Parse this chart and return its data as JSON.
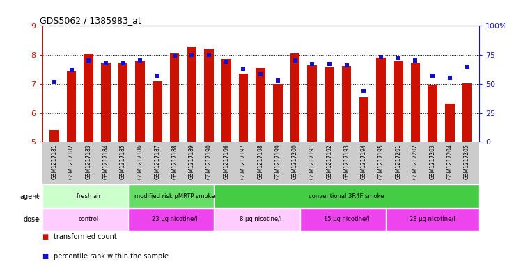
{
  "title": "GDS5062 / 1385983_at",
  "samples": [
    "GSM1217181",
    "GSM1217182",
    "GSM1217183",
    "GSM1217184",
    "GSM1217185",
    "GSM1217186",
    "GSM1217187",
    "GSM1217188",
    "GSM1217189",
    "GSM1217190",
    "GSM1217196",
    "GSM1217197",
    "GSM1217198",
    "GSM1217199",
    "GSM1217200",
    "GSM1217191",
    "GSM1217192",
    "GSM1217193",
    "GSM1217194",
    "GSM1217195",
    "GSM1217201",
    "GSM1217202",
    "GSM1217203",
    "GSM1217204",
    "GSM1217205"
  ],
  "bar_values": [
    5.42,
    7.45,
    8.02,
    7.75,
    7.75,
    7.78,
    7.1,
    8.05,
    8.28,
    8.22,
    7.85,
    7.35,
    7.55,
    7.0,
    8.05,
    7.65,
    7.6,
    7.62,
    6.55,
    7.9,
    7.78,
    7.75,
    6.98,
    6.32,
    7.02
  ],
  "percentile_values": [
    52,
    62,
    70,
    68,
    68,
    70,
    57,
    74,
    75,
    75,
    69,
    63,
    58,
    53,
    70,
    67,
    67,
    66,
    44,
    73,
    72,
    70,
    57,
    55,
    65
  ],
  "bar_bottom": 5.0,
  "ylim_left": [
    5,
    9
  ],
  "ylim_right": [
    0,
    100
  ],
  "yticks_left": [
    5,
    6,
    7,
    8,
    9
  ],
  "yticks_right": [
    0,
    25,
    50,
    75,
    100
  ],
  "ytick_right_labels": [
    "0",
    "25",
    "50",
    "75",
    "100%"
  ],
  "bar_color": "#cc1100",
  "dot_color": "#1111cc",
  "agent_groups": [
    {
      "label": "fresh air",
      "start": 0,
      "end": 5,
      "color": "#ccffcc"
    },
    {
      "label": "modified risk pMRTP smoke",
      "start": 5,
      "end": 10,
      "color": "#66dd66"
    },
    {
      "label": "conventional 3R4F smoke",
      "start": 10,
      "end": 25,
      "color": "#44cc44"
    }
  ],
  "dose_groups": [
    {
      "label": "control",
      "start": 0,
      "end": 5,
      "color": "#ffccff"
    },
    {
      "label": "23 μg nicotine/l",
      "start": 5,
      "end": 10,
      "color": "#ee44ee"
    },
    {
      "label": "8 μg nicotine/l",
      "start": 10,
      "end": 15,
      "color": "#ffccff"
    },
    {
      "label": "15 μg nicotine/l",
      "start": 15,
      "end": 20,
      "color": "#ee44ee"
    },
    {
      "label": "23 μg nicotine/l",
      "start": 20,
      "end": 25,
      "color": "#ee44ee"
    }
  ],
  "xtick_bg_color": "#cccccc",
  "legend_bar_label": "transformed count",
  "legend_dot_label": "percentile rank within the sample",
  "grid_yticks": [
    6,
    7,
    8
  ]
}
